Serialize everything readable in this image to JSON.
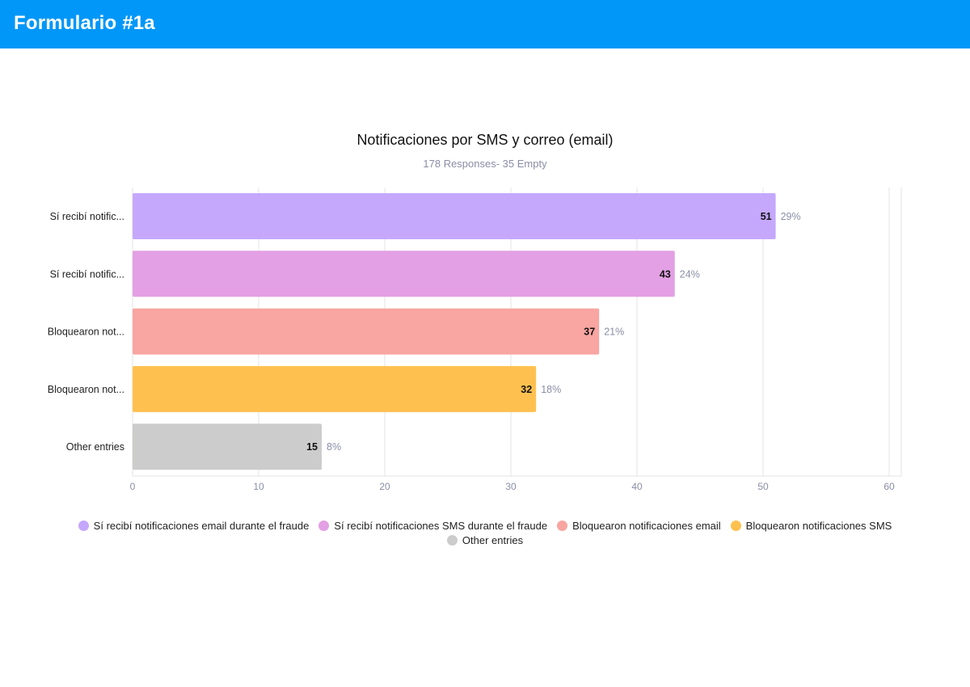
{
  "header": {
    "title": "Formulario #1a"
  },
  "chart_data": {
    "type": "bar",
    "orientation": "horizontal",
    "title": "Notificaciones por SMS y correo (email)",
    "subtitle": "178 Responses- 35 Empty",
    "categories": [
      "Sí recibí notificaciones email durante el fraude",
      "Sí recibí notificaciones SMS durante el fraude",
      "Bloquearon notificaciones email",
      "Bloquearon notificaciones SMS",
      "Other entries"
    ],
    "category_labels_truncated": [
      "Sí recibí notific...",
      "Sí recibí notific...",
      "Bloquearon not...",
      "Bloquearon not...",
      "Other entries"
    ],
    "values": [
      51,
      43,
      37,
      32,
      15
    ],
    "percentages": [
      "29%",
      "24%",
      "21%",
      "18%",
      "8%"
    ],
    "colors": [
      "#c5a8fc",
      "#e3a0e4",
      "#f9a5a2",
      "#fec150",
      "#cccccc"
    ],
    "xlim": [
      0,
      60
    ],
    "xticks": [
      0,
      10,
      20,
      30,
      40,
      50,
      60
    ],
    "grid": true,
    "legend_position": "bottom",
    "legend": [
      "Sí recibí notificaciones email durante el fraude",
      "Sí recibí notificaciones SMS durante el fraude",
      "Bloquearon notificaciones email",
      "Bloquearon notificaciones SMS",
      "Other entries"
    ]
  }
}
